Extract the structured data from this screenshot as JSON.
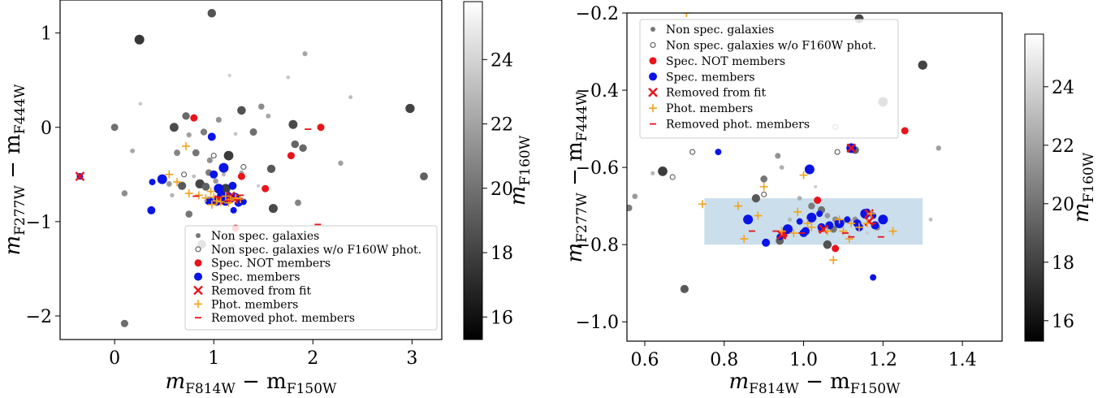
{
  "chart_data": [
    {
      "type": "scatter",
      "title": "",
      "xlabel": "m_F814W − m_F150W",
      "ylabel": "m_F277W − m_F444W",
      "xlabel_main": "m",
      "xlabel_sub1": "F814W",
      "xlabel_sub2": "F150W",
      "ylabel_sub1": "F277W",
      "ylabel_sub2": "F444W",
      "xlim": [
        -0.55,
        3.3
      ],
      "ylim": [
        -2.25,
        1.35
      ],
      "xticks": [
        0,
        1,
        2,
        3
      ],
      "yticks": [
        -2,
        -1,
        0,
        1
      ],
      "xtick_labels": [
        "0",
        "1",
        "2",
        "3"
      ],
      "ytick_labels": [
        "−2",
        "−1",
        "0",
        "1"
      ],
      "grid": false,
      "legend_position": "lower-right",
      "legend": [
        "Non spec. galaxies",
        "Non spec. galaxies w/o F160W phot.",
        "Spec. NOT members",
        "Spec. members",
        "Removed from fit",
        "Phot. members",
        "Removed phot. members"
      ],
      "colorbar": {
        "label": "m_F160W",
        "label_sub": "F160W",
        "range": [
          15.3,
          25.8
        ],
        "ticks": [
          16,
          18,
          20,
          22,
          24
        ],
        "tick_labels": [
          "16",
          "18",
          "20",
          "22",
          "24"
        ]
      },
      "series": [
        {
          "kind": "non_spec",
          "points": [
            [
              0.25,
              0.93
            ],
            [
              0.98,
              1.21
            ],
            [
              0.0,
              0.0
            ],
            [
              0.1,
              -0.7
            ],
            [
              0.18,
              -0.25
            ],
            [
              0.26,
              0.25
            ],
            [
              0.6,
              0.0
            ],
            [
              0.72,
              0.12
            ],
            [
              0.63,
              -0.27
            ],
            [
              0.75,
              -0.08
            ],
            [
              0.8,
              -0.52
            ],
            [
              0.86,
              -0.6
            ],
            [
              0.92,
              -0.63
            ],
            [
              0.95,
              -0.48
            ],
            [
              1.02,
              -0.57
            ],
            [
              1.1,
              -0.5
            ],
            [
              1.12,
              -0.65
            ],
            [
              0.68,
              -0.62
            ],
            [
              0.75,
              -0.92
            ],
            [
              1.05,
              0.08
            ],
            [
              0.98,
              -0.12
            ],
            [
              1.16,
              0.55
            ],
            [
              1.28,
              0.18
            ],
            [
              1.4,
              -0.05
            ],
            [
              1.48,
              0.22
            ],
            [
              1.55,
              0.12
            ],
            [
              1.75,
              0.53
            ],
            [
              1.8,
              0.03
            ],
            [
              1.9,
              -0.22
            ],
            [
              1.85,
              -0.8
            ],
            [
              2.28,
              -0.38
            ],
            [
              2.38,
              0.32
            ],
            [
              2.98,
              0.2
            ],
            [
              3.12,
              -0.52
            ],
            [
              0.9,
              -0.05
            ],
            [
              0.55,
              -0.6
            ],
            [
              0.58,
              -0.72
            ],
            [
              1.15,
              -0.3
            ],
            [
              1.58,
              -0.44
            ],
            [
              0.82,
              -0.27
            ],
            [
              0.96,
              -0.35
            ],
            [
              1.28,
              -0.48
            ],
            [
              1.45,
              -0.62
            ],
            [
              0.88,
              -1.24
            ],
            [
              0.1,
              -2.08
            ],
            [
              1.19,
              -1.27
            ],
            [
              1.92,
              0.78
            ],
            [
              1.22,
              -0.07
            ],
            [
              1.6,
              -0.86
            ],
            [
              1.82,
              -0.18
            ]
          ]
        },
        {
          "kind": "non_spec_no_f160w",
          "points": [
            [
              1.0,
              -0.3
            ],
            [
              0.7,
              -0.5
            ],
            [
              1.3,
              -0.42
            ]
          ]
        },
        {
          "kind": "spec_not_member",
          "points": [
            [
              1.28,
              -0.52
            ],
            [
              1.52,
              -0.65
            ],
            [
              1.78,
              -0.3
            ],
            [
              2.08,
              0.0
            ],
            [
              0.8,
              0.1
            ],
            [
              1.22,
              -1.07
            ]
          ]
        },
        {
          "kind": "spec_member",
          "points": [
            [
              -0.35,
              -0.52
            ],
            [
              1.0,
              -0.5
            ],
            [
              1.1,
              -0.43
            ],
            [
              1.2,
              -0.88
            ],
            [
              0.98,
              -0.1
            ],
            [
              1.05,
              -0.65
            ],
            [
              1.15,
              -0.72
            ],
            [
              1.25,
              -0.8
            ],
            [
              1.12,
              -0.78
            ],
            [
              0.38,
              -0.58
            ],
            [
              0.95,
              -0.78
            ],
            [
              1.08,
              -0.73
            ],
            [
              1.18,
              -0.76
            ],
            [
              1.22,
              -0.74
            ],
            [
              1.03,
              -0.78
            ],
            [
              1.3,
              -0.79
            ],
            [
              0.37,
              -0.88
            ],
            [
              0.48,
              -0.55
            ],
            [
              1.28,
              -0.78
            ],
            [
              1.19,
              -0.62
            ]
          ]
        },
        {
          "kind": "removed_from_fit",
          "points": [
            [
              -0.35,
              -0.52
            ],
            [
              1.05,
              -0.77
            ],
            [
              1.17,
              -0.73
            ],
            [
              1.2,
              -0.76
            ]
          ]
        },
        {
          "kind": "phot_member",
          "points": [
            [
              0.55,
              -0.5
            ],
            [
              0.72,
              -0.2
            ],
            [
              0.75,
              -0.7
            ],
            [
              0.85,
              -0.72
            ],
            [
              0.92,
              -0.75
            ],
            [
              1.0,
              -0.74
            ],
            [
              1.07,
              -0.79
            ],
            [
              1.12,
              -0.73
            ],
            [
              1.17,
              -0.77
            ],
            [
              1.22,
              -0.75
            ],
            [
              1.27,
              -0.76
            ],
            [
              1.03,
              -0.78
            ],
            [
              0.97,
              -0.68
            ],
            [
              0.63,
              -0.58
            ],
            [
              0.98,
              -0.82
            ],
            [
              1.15,
              -0.8
            ]
          ]
        },
        {
          "kind": "removed_phot_member",
          "points": [
            [
              1.95,
              -0.02
            ],
            [
              2.05,
              -1.03
            ],
            [
              0.82,
              -0.73
            ],
            [
              1.04,
              -0.74
            ],
            [
              1.14,
              -0.78
            ],
            [
              1.24,
              -0.77
            ],
            [
              1.27,
              -0.72
            ]
          ]
        }
      ]
    },
    {
      "type": "scatter",
      "title": "",
      "xlabel": "m_F814W − m_F150W",
      "ylabel": "m_F277W − m_F444W",
      "xlabel_main": "m",
      "xlabel_sub1": "F814W",
      "xlabel_sub2": "F150W",
      "ylabel_sub1": "F277W",
      "ylabel_sub2": "F444W",
      "xlim": [
        0.555,
        1.5
      ],
      "ylim": [
        -1.05,
        -0.2
      ],
      "xticks": [
        0.6,
        0.8,
        1.0,
        1.2,
        1.4
      ],
      "yticks": [
        -1.0,
        -0.8,
        -0.6,
        -0.4,
        -0.2
      ],
      "xtick_labels": [
        "0.6",
        "0.8",
        "1.0",
        "1.2",
        "1.4"
      ],
      "ytick_labels": [
        "−1.0",
        "−0.8",
        "−0.6",
        "−0.4",
        "−0.2"
      ],
      "grid": false,
      "legend_position": "upper-left",
      "legend": [
        "Non spec. galaxies",
        "Non spec. galaxies w/o F160W phot.",
        "Spec. NOT members",
        "Spec. members",
        "Removed from fit",
        "Phot. members",
        "Removed phot. members"
      ],
      "selection_box": {
        "x": [
          0.75,
          1.3
        ],
        "y": [
          -0.8,
          -0.68
        ],
        "color": "#b8d3e6"
      },
      "colorbar": {
        "label": "m_F160W",
        "label_sub": "F160W",
        "range": [
          15.3,
          25.8
        ],
        "ticks": [
          16,
          18,
          20,
          22,
          24
        ],
        "tick_labels": [
          "16",
          "18",
          "20",
          "22",
          "24"
        ]
      },
      "series": [
        {
          "kind": "non_spec",
          "points": [
            [
              0.56,
              -0.705
            ],
            [
              0.575,
              -0.675
            ],
            [
              0.62,
              -0.615
            ],
            [
              0.645,
              -0.61
            ],
            [
              0.7,
              -0.915
            ],
            [
              0.9,
              -0.63
            ],
            [
              0.935,
              -0.57
            ],
            [
              0.945,
              -0.6
            ],
            [
              1.03,
              -0.65
            ],
            [
              1.06,
              -0.8
            ],
            [
              1.045,
              -0.71
            ],
            [
              1.08,
              -0.735
            ],
            [
              1.1,
              -0.74
            ],
            [
              1.15,
              -0.3
            ],
            [
              1.14,
              -0.215
            ],
            [
              1.13,
              -0.555
            ],
            [
              1.185,
              -0.755
            ],
            [
              1.34,
              -0.55
            ],
            [
              1.32,
              -0.735
            ],
            [
              1.3,
              -0.335
            ],
            [
              0.94,
              -0.79
            ],
            [
              1.02,
              -0.7
            ],
            [
              1.06,
              -0.725
            ],
            [
              0.965,
              -0.735
            ],
            [
              1.2,
              -0.43
            ],
            [
              0.88,
              -0.68
            ],
            [
              1.075,
              -0.76
            ],
            [
              1.13,
              -0.735
            ],
            [
              0.99,
              -0.68
            ],
            [
              1.16,
              -0.77
            ]
          ]
        },
        {
          "kind": "non_spec_no_f160w",
          "points": [
            [
              0.67,
              -0.625
            ],
            [
              0.72,
              -0.56
            ],
            [
              0.9,
              -0.67
            ],
            [
              1.085,
              -0.56
            ],
            [
              1.08,
              -0.495
            ]
          ]
        },
        {
          "kind": "spec_not_member",
          "points": [
            [
              1.035,
              -0.685
            ],
            [
              1.255,
              -0.505
            ],
            [
              1.08,
              -0.81
            ],
            [
              0.95,
              -0.775
            ]
          ]
        },
        {
          "kind": "spec_member",
          "points": [
            [
              0.785,
              -0.56
            ],
            [
              0.905,
              -0.795
            ],
            [
              0.96,
              -0.76
            ],
            [
              0.99,
              -0.74
            ],
            [
              1.005,
              -0.765
            ],
            [
              1.02,
              -0.73
            ],
            [
              1.04,
              -0.72
            ],
            [
              1.065,
              -0.75
            ],
            [
              1.09,
              -0.745
            ],
            [
              1.11,
              -0.735
            ],
            [
              1.135,
              -0.745
            ],
            [
              1.155,
              -0.72
            ],
            [
              1.175,
              -0.725
            ],
            [
              1.18,
              -0.75
            ],
            [
              1.2,
              -0.735
            ],
            [
              1.175,
              -0.885
            ],
            [
              1.045,
              -0.755
            ],
            [
              1.12,
              -0.55
            ],
            [
              0.94,
              -0.78
            ],
            [
              1.14,
              -0.755
            ],
            [
              0.86,
              -0.735
            ],
            [
              1.16,
              -0.715
            ],
            [
              1.0,
              -0.77
            ],
            [
              1.015,
              -0.605
            ]
          ]
        },
        {
          "kind": "removed_from_fit",
          "points": [
            [
              0.945,
              -0.775
            ],
            [
              1.12,
              -0.55
            ],
            [
              1.165,
              -0.72
            ],
            [
              1.165,
              -0.74
            ],
            [
              1.05,
              -0.76
            ]
          ]
        },
        {
          "kind": "phot_member",
          "points": [
            [
              0.745,
              -0.695
            ],
            [
              0.835,
              -0.7
            ],
            [
              0.85,
              -0.785
            ],
            [
              0.885,
              -0.725
            ],
            [
              0.9,
              -0.65
            ],
            [
              0.945,
              -0.765
            ],
            [
              0.975,
              -0.77
            ],
            [
              0.985,
              -0.715
            ],
            [
              1.0,
              -0.62
            ],
            [
              1.01,
              -0.745
            ],
            [
              1.02,
              -0.755
            ],
            [
              1.06,
              -0.765
            ],
            [
              1.075,
              -0.84
            ],
            [
              1.09,
              -0.735
            ],
            [
              1.1,
              -0.765
            ],
            [
              1.12,
              -0.745
            ],
            [
              1.14,
              -0.755
            ],
            [
              1.16,
              -0.745
            ],
            [
              1.17,
              -0.72
            ],
            [
              1.225,
              -0.765
            ],
            [
              1.115,
              -0.785
            ],
            [
              0.705,
              -0.2
            ]
          ]
        },
        {
          "kind": "removed_phot_member",
          "points": [
            [
              0.87,
              -0.765
            ],
            [
              0.93,
              -0.765
            ],
            [
              0.995,
              -0.77
            ],
            [
              1.045,
              -0.765
            ],
            [
              1.105,
              -0.77
            ],
            [
              1.175,
              -0.745
            ],
            [
              1.195,
              -0.78
            ],
            [
              1.12,
              -0.78
            ]
          ]
        }
      ]
    }
  ]
}
